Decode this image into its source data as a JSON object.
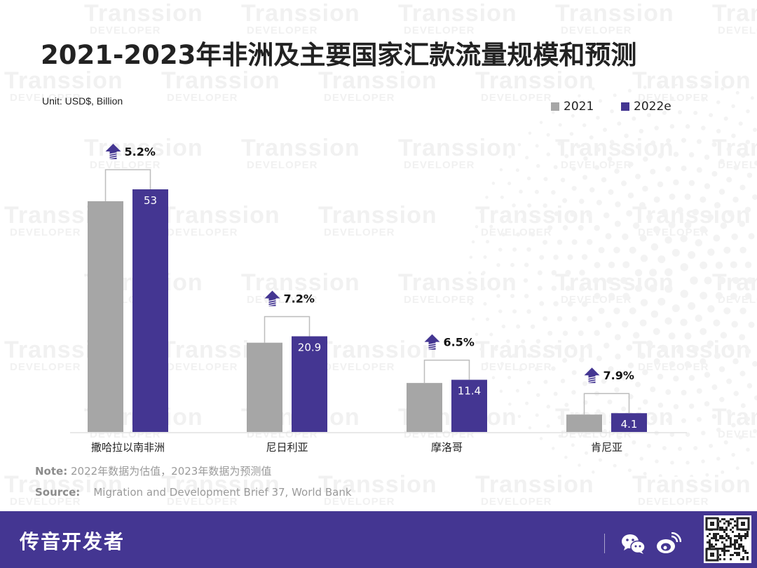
{
  "title": "2021-2023年非洲及主要国家汇款流量规模和预测",
  "unit_label": "Unit: USD$, Billion",
  "legend": [
    {
      "label": "2021",
      "color": "#a6a6a6"
    },
    {
      "label": "2022e",
      "color": "#443692"
    }
  ],
  "watermark": {
    "brand": "Transsion",
    "sub": "DEVELOPER"
  },
  "note": {
    "label": "Note:",
    "text": "2022年数据为估值，2023年数据为预测值"
  },
  "source": {
    "label": "Source:",
    "text": "Migration and Development Brief 37, World Bank"
  },
  "footer": {
    "brand": "传音开发者",
    "icons": [
      "wechat-icon",
      "weibo-icon",
      "qr-code"
    ]
  },
  "chart_data": {
    "type": "bar",
    "title": "2021-2023年非洲及主要国家汇款流量规模和预测",
    "ylabel": "USD$, Billion",
    "xlabel": "",
    "categories": [
      "撒哈拉以南非洲",
      "尼日利亚",
      "摩洛哥",
      "肯尼亚"
    ],
    "series": [
      {
        "name": "2021",
        "color": "#a6a6a6",
        "values": [
          50.4,
          19.5,
          10.7,
          3.8
        ]
      },
      {
        "name": "2022e",
        "color": "#443692",
        "values": [
          53,
          20.9,
          11.4,
          4.1
        ]
      }
    ],
    "data_labels": [
      "53",
      "20.9",
      "11.4",
      "4.1"
    ],
    "growth_labels": [
      "5.2%",
      "7.2%",
      "6.5%",
      "7.9%"
    ],
    "ylim": [
      0,
      60
    ],
    "grid": false,
    "legend_position": "top-right"
  }
}
